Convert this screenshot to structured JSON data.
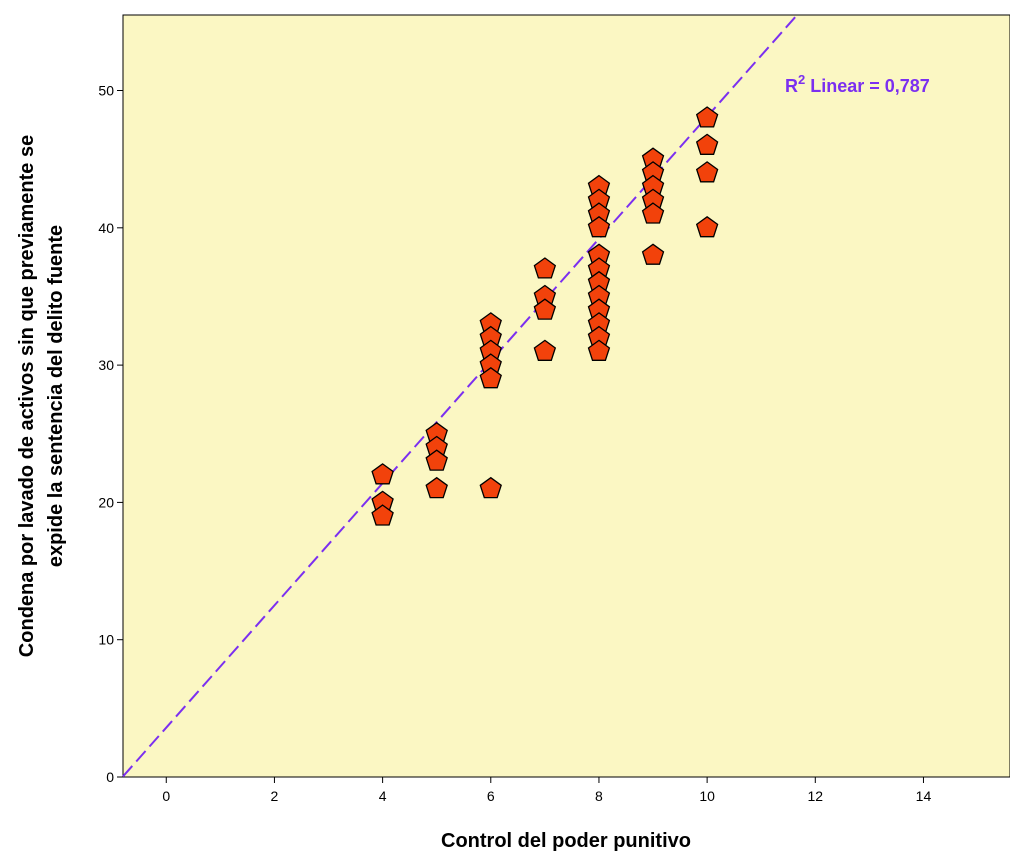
{
  "chart_data": {
    "type": "scatter",
    "xlabel": "Control del poder punitivo",
    "ylabel_lines": [
      "Condena por lavado de activos sin que previamente se",
      "expide la sentencia del delito fuente"
    ],
    "xlim": [
      -0.8,
      15.6
    ],
    "ylim": [
      0,
      55.5
    ],
    "x_ticks": [
      0,
      2,
      4,
      6,
      8,
      10,
      12,
      14
    ],
    "y_ticks": [
      0,
      10,
      20,
      30,
      40,
      50
    ],
    "grid": false,
    "points": [
      {
        "x": 4,
        "y": 22
      },
      {
        "x": 4,
        "y": 20
      },
      {
        "x": 4,
        "y": 19
      },
      {
        "x": 5,
        "y": 25
      },
      {
        "x": 5,
        "y": 24
      },
      {
        "x": 5,
        "y": 23
      },
      {
        "x": 5,
        "y": 21
      },
      {
        "x": 6,
        "y": 33
      },
      {
        "x": 6,
        "y": 32
      },
      {
        "x": 6,
        "y": 31
      },
      {
        "x": 6,
        "y": 30
      },
      {
        "x": 6,
        "y": 29
      },
      {
        "x": 6,
        "y": 21
      },
      {
        "x": 7,
        "y": 37
      },
      {
        "x": 7,
        "y": 35
      },
      {
        "x": 7,
        "y": 34
      },
      {
        "x": 7,
        "y": 31
      },
      {
        "x": 8,
        "y": 43
      },
      {
        "x": 8,
        "y": 42
      },
      {
        "x": 8,
        "y": 41
      },
      {
        "x": 8,
        "y": 40
      },
      {
        "x": 8,
        "y": 38
      },
      {
        "x": 8,
        "y": 37
      },
      {
        "x": 8,
        "y": 36
      },
      {
        "x": 8,
        "y": 35
      },
      {
        "x": 8,
        "y": 34
      },
      {
        "x": 8,
        "y": 33
      },
      {
        "x": 8,
        "y": 32
      },
      {
        "x": 8,
        "y": 31
      },
      {
        "x": 9,
        "y": 45
      },
      {
        "x": 9,
        "y": 44
      },
      {
        "x": 9,
        "y": 43
      },
      {
        "x": 9,
        "y": 42
      },
      {
        "x": 9,
        "y": 41
      },
      {
        "x": 9,
        "y": 38
      },
      {
        "x": 10,
        "y": 48
      },
      {
        "x": 10,
        "y": 46
      },
      {
        "x": 10,
        "y": 44
      },
      {
        "x": 10,
        "y": 40
      }
    ],
    "fit_line": {
      "type": "linear",
      "intercept": 3.6,
      "slope": 4.45
    },
    "annotation": {
      "prefix": "R",
      "superscript": "2",
      "text": " Linear = 0,787"
    },
    "colors": {
      "plot_background": "#fbf7c3",
      "marker_fill": "#f2420b",
      "marker_stroke": "#000000",
      "fit_line": "#7b2ff0",
      "annotation": "#7b2ff0"
    }
  }
}
